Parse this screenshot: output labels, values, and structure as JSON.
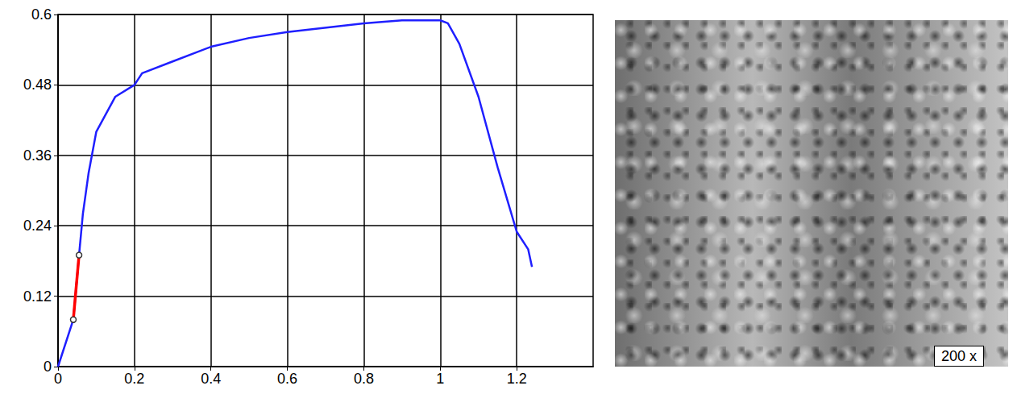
{
  "chart_data": {
    "type": "line",
    "xlim": [
      0,
      1.4
    ],
    "xticks": [
      0,
      0.2,
      0.4,
      0.6,
      0.8,
      1,
      1.2
    ],
    "ylim": [
      0,
      0.6
    ],
    "yticks": [
      0,
      0.12,
      0.24,
      0.36,
      0.48,
      0.6
    ],
    "grid": true,
    "series": [
      {
        "color": "#1f1fff",
        "marker": "none",
        "line_style": "solid",
        "x": [
          0,
          0.04,
          0.055,
          0.065,
          0.08,
          0.1,
          0.15,
          0.2,
          0.22,
          0.3,
          0.4,
          0.5,
          0.6,
          0.8,
          0.9,
          1,
          1.02,
          1.05,
          1.1,
          1.15,
          1.2,
          1.23,
          1.24
        ],
        "values": [
          0,
          0.08,
          0.19,
          0.26,
          0.33,
          0.4,
          0.46,
          0.48,
          0.5,
          0.52,
          0.545,
          0.56,
          0.57,
          0.585,
          0.59,
          0.59,
          0.585,
          0.55,
          0.46,
          0.34,
          0.23,
          0.2,
          0.17
        ]
      },
      {
        "color": "#ff0000",
        "marker": "circle",
        "line_style": "solid",
        "x": [
          0.04,
          0.055
        ],
        "values": [
          0.08,
          0.19
        ]
      }
    ]
  },
  "micrograph": {
    "label": "200 x"
  }
}
